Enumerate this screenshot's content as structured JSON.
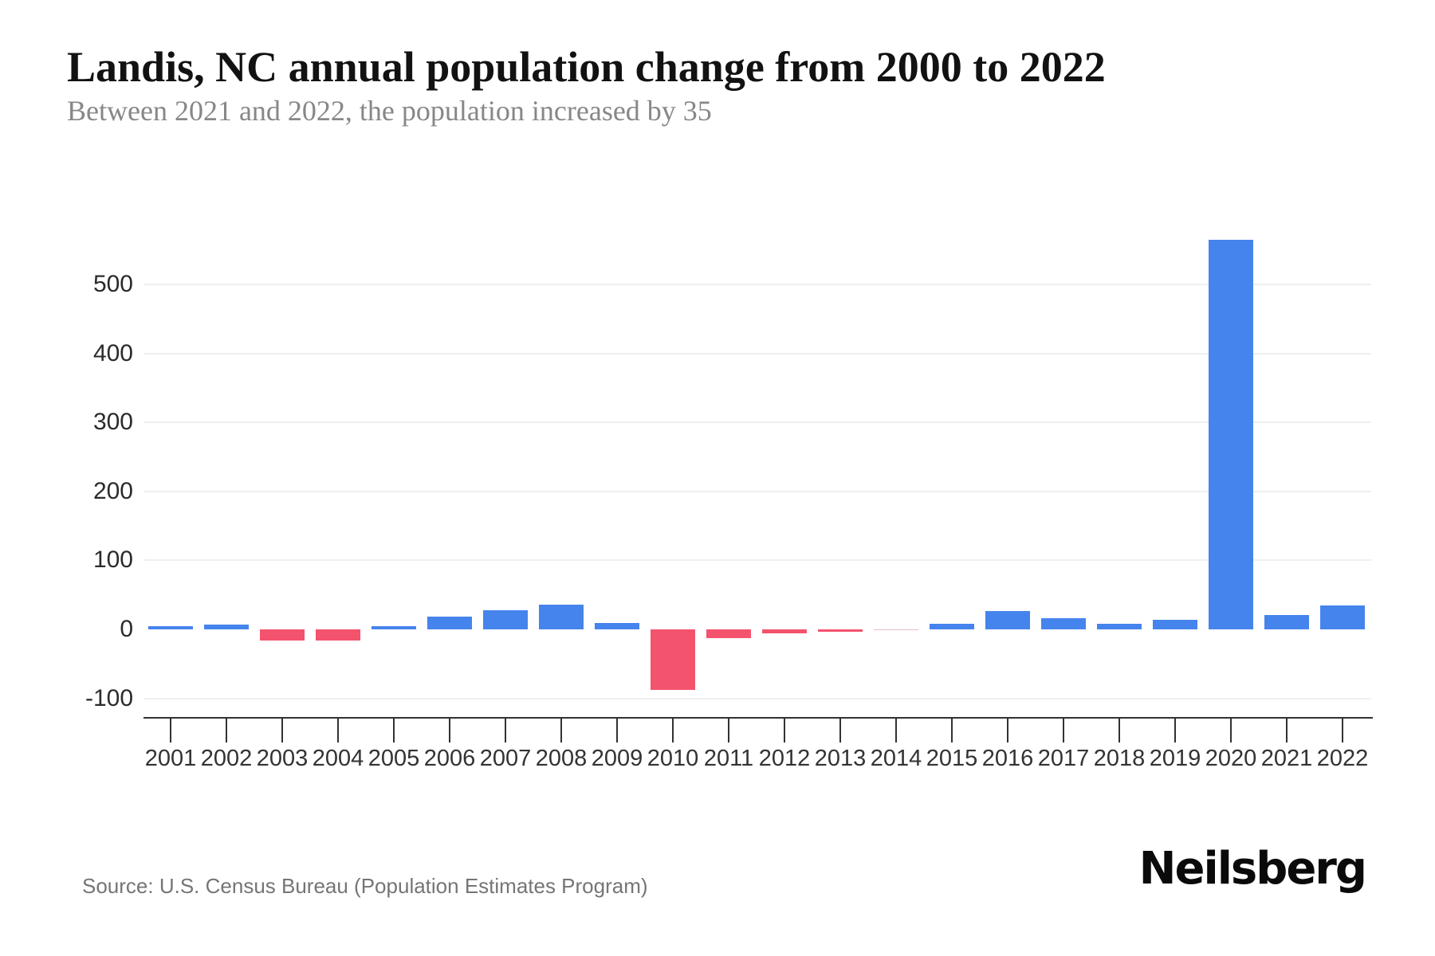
{
  "header": {
    "title": "Landis, NC annual population change from 2000 to 2022",
    "subtitle": "Between 2021 and 2022, the population increased by 35"
  },
  "chart_data": {
    "type": "bar",
    "title": "Landis, NC annual population change from 2000 to 2022",
    "subtitle": "Between 2021 and 2022, the population increased by 35",
    "categories": [
      "2001",
      "2002",
      "2003",
      "2004",
      "2005",
      "2006",
      "2007",
      "2008",
      "2009",
      "2010",
      "2011",
      "2012",
      "2013",
      "2014",
      "2015",
      "2016",
      "2017",
      "2018",
      "2019",
      "2020",
      "2021",
      "2022"
    ],
    "values": [
      5,
      7,
      -16,
      -16,
      5,
      18,
      28,
      36,
      9,
      -88,
      -13,
      -6,
      -3,
      -1,
      8,
      27,
      16,
      8,
      14,
      565,
      21,
      35
    ],
    "yticks": [
      500,
      400,
      300,
      200,
      100,
      0,
      -100
    ],
    "ylim": [
      -130,
      580
    ],
    "xlabel": "",
    "ylabel": "",
    "grid": "horizontal",
    "legend": "none",
    "colors": {
      "positive": "#4584ec",
      "negative": "#f4536e",
      "gridline": "#efefef",
      "axis": "#323232"
    }
  },
  "footer": {
    "source": "Source: U.S. Census Bureau (Population Estimates Program)",
    "logo": "Neilsberg"
  }
}
